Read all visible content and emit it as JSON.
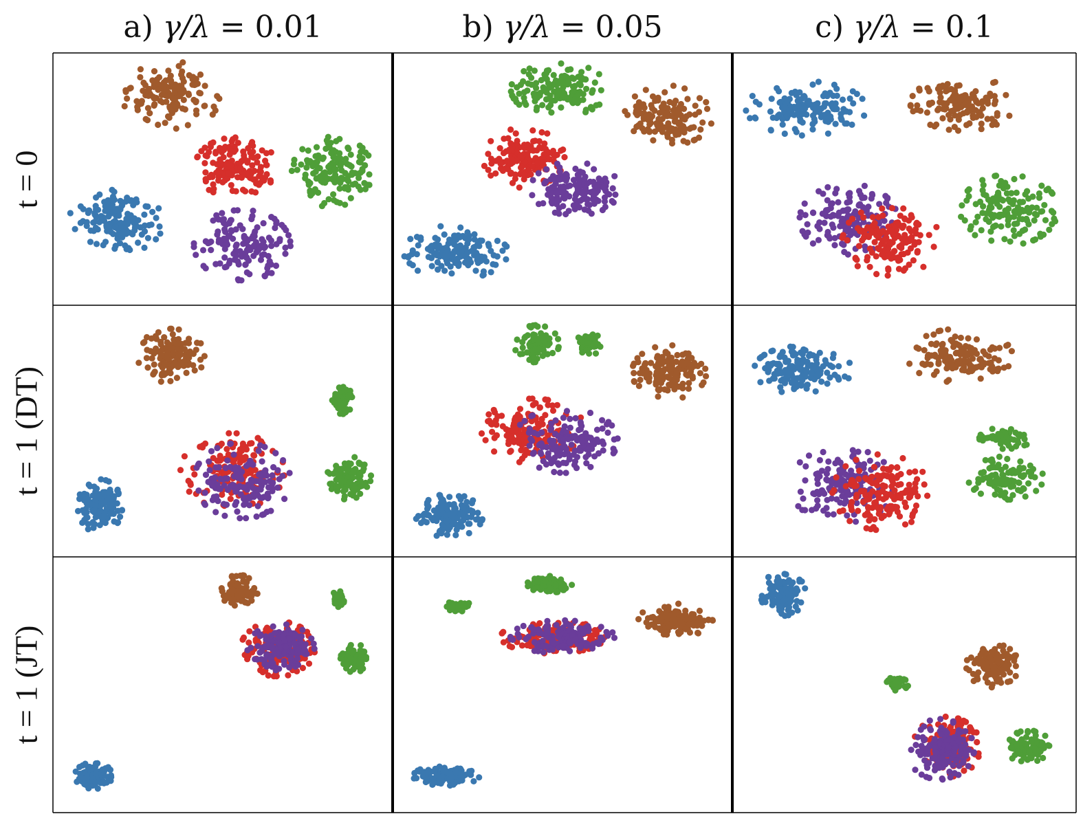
{
  "columns": [
    {
      "prefix": "a) ",
      "value": "0.01"
    },
    {
      "prefix": "b) ",
      "value": "0.05"
    },
    {
      "prefix": "c) ",
      "value": "0.1"
    }
  ],
  "ratio_symbol": "γ/λ",
  "equals": " = ",
  "rows": [
    {
      "label": "t = 0"
    },
    {
      "label": "t = 1 (DT)"
    },
    {
      "label": "t = 1 (JT)"
    }
  ],
  "colors": {
    "blue": "#3a78b0",
    "brown": "#a05a2c",
    "red": "#d62f2b",
    "green": "#4f9e38",
    "purple": "#6a3d9a"
  },
  "chart_data": {
    "type": "scatter",
    "grid": false,
    "x_range": [
      0,
      100
    ],
    "y_range": [
      0,
      100
    ],
    "panels": [
      {
        "row": 0,
        "col": 0,
        "clusters": [
          {
            "color": "brown",
            "cx": 34,
            "cy": 85,
            "sx": 6.5,
            "sy": 6.5,
            "n": 140
          },
          {
            "color": "red",
            "cx": 54,
            "cy": 55,
            "sx": 5.5,
            "sy": 5.5,
            "n": 150
          },
          {
            "color": "green",
            "cx": 84,
            "cy": 53,
            "sx": 5.5,
            "sy": 6.5,
            "n": 150
          },
          {
            "color": "blue",
            "cx": 17,
            "cy": 33,
            "sx": 6.5,
            "sy": 6.5,
            "n": 150
          },
          {
            "color": "purple",
            "cx": 56,
            "cy": 22,
            "sx": 6.5,
            "sy": 6.5,
            "n": 150
          }
        ]
      },
      {
        "row": 0,
        "col": 1,
        "clusters": [
          {
            "color": "green",
            "cx": 49,
            "cy": 88,
            "sx": 6.5,
            "sy": 5,
            "n": 150
          },
          {
            "color": "brown",
            "cx": 83,
            "cy": 77,
            "sx": 6,
            "sy": 5.5,
            "n": 140
          },
          {
            "color": "red",
            "cx": 38,
            "cy": 59,
            "sx": 5.5,
            "sy": 5.5,
            "n": 150
          },
          {
            "color": "purple",
            "cx": 54,
            "cy": 46,
            "sx": 6,
            "sy": 5,
            "n": 150
          },
          {
            "color": "blue",
            "cx": 17,
            "cy": 19,
            "sx": 7,
            "sy": 5,
            "n": 150
          }
        ]
      },
      {
        "row": 0,
        "col": 2,
        "clusters": [
          {
            "color": "blue",
            "cx": 20,
            "cy": 80,
            "sx": 8,
            "sy": 5,
            "n": 150
          },
          {
            "color": "brown",
            "cx": 68,
            "cy": 82,
            "sx": 7,
            "sy": 5,
            "n": 140
          },
          {
            "color": "green",
            "cx": 82,
            "cy": 37,
            "sx": 6.5,
            "sy": 6.5,
            "n": 150
          },
          {
            "color": "purple",
            "cx": 33,
            "cy": 33,
            "sx": 6.5,
            "sy": 6.5,
            "n": 150
          },
          {
            "color": "red",
            "cx": 46,
            "cy": 24,
            "sx": 6.5,
            "sy": 6.5,
            "n": 150
          }
        ]
      },
      {
        "row": 1,
        "col": 0,
        "clusters": [
          {
            "color": "brown",
            "cx": 34,
            "cy": 82,
            "sx": 4.5,
            "sy": 5,
            "n": 130
          },
          {
            "color": "green",
            "cx": 87,
            "cy": 63,
            "sx": 1.5,
            "sy": 2.5,
            "n": 70
          },
          {
            "color": "green",
            "cx": 89,
            "cy": 30,
            "sx": 3,
            "sy": 4,
            "n": 110
          },
          {
            "color": "red",
            "cx": 53,
            "cy": 33,
            "sx": 7,
            "sy": 7,
            "n": 150
          },
          {
            "color": "purple",
            "cx": 56,
            "cy": 29,
            "sx": 6.5,
            "sy": 7,
            "n": 150
          },
          {
            "color": "blue",
            "cx": 12,
            "cy": 18,
            "sx": 3,
            "sy": 5,
            "n": 140
          }
        ]
      },
      {
        "row": 1,
        "col": 1,
        "clusters": [
          {
            "color": "green",
            "cx": 42,
            "cy": 87,
            "sx": 3,
            "sy": 3.5,
            "n": 80
          },
          {
            "color": "green",
            "cx": 58,
            "cy": 87,
            "sx": 2,
            "sy": 2,
            "n": 50
          },
          {
            "color": "brown",
            "cx": 83,
            "cy": 75,
            "sx": 5,
            "sy": 5,
            "n": 140
          },
          {
            "color": "red",
            "cx": 41,
            "cy": 50,
            "sx": 7,
            "sy": 6,
            "n": 150
          },
          {
            "color": "purple",
            "cx": 51,
            "cy": 46,
            "sx": 7,
            "sy": 6,
            "n": 150
          },
          {
            "color": "blue",
            "cx": 15,
            "cy": 14,
            "sx": 4.5,
            "sy": 4,
            "n": 140
          }
        ]
      },
      {
        "row": 1,
        "col": 2,
        "clusters": [
          {
            "color": "blue",
            "cx": 19,
            "cy": 76,
            "sx": 6.5,
            "sy": 4.5,
            "n": 150
          },
          {
            "color": "brown",
            "cx": 67,
            "cy": 82,
            "sx": 7,
            "sy": 5,
            "n": 140
          },
          {
            "color": "green",
            "cx": 81,
            "cy": 47,
            "sx": 3.5,
            "sy": 2,
            "n": 60
          },
          {
            "color": "green",
            "cx": 81,
            "cy": 30,
            "sx": 5,
            "sy": 4,
            "n": 110
          },
          {
            "color": "purple",
            "cx": 31,
            "cy": 27,
            "sx": 7,
            "sy": 7,
            "n": 150
          },
          {
            "color": "red",
            "cx": 43,
            "cy": 24,
            "sx": 6.5,
            "sy": 7,
            "n": 150
          }
        ]
      },
      {
        "row": 2,
        "col": 0,
        "clusters": [
          {
            "color": "brown",
            "cx": 55,
            "cy": 89,
            "sx": 2.5,
            "sy": 3,
            "n": 110
          },
          {
            "color": "green",
            "cx": 86,
            "cy": 86,
            "sx": 1,
            "sy": 1.5,
            "n": 40
          },
          {
            "color": "red",
            "cx": 67,
            "cy": 65,
            "sx": 5,
            "sy": 5,
            "n": 150
          },
          {
            "color": "purple",
            "cx": 68,
            "cy": 65,
            "sx": 4.5,
            "sy": 4.5,
            "n": 150
          },
          {
            "color": "green",
            "cx": 91,
            "cy": 61,
            "sx": 2.5,
            "sy": 2.5,
            "n": 80
          },
          {
            "color": "blue",
            "cx": 10,
            "cy": 12,
            "sx": 2.5,
            "sy": 2.5,
            "n": 100
          }
        ]
      },
      {
        "row": 2,
        "col": 1,
        "clusters": [
          {
            "color": "green",
            "cx": 46,
            "cy": 92,
            "sx": 3,
            "sy": 1.5,
            "n": 90
          },
          {
            "color": "green",
            "cx": 18,
            "cy": 83,
            "sx": 2,
            "sy": 1,
            "n": 40
          },
          {
            "color": "brown",
            "cx": 85,
            "cy": 77,
            "sx": 5,
            "sy": 3,
            "n": 140
          },
          {
            "color": "red",
            "cx": 47,
            "cy": 70,
            "sx": 7,
            "sy": 3,
            "n": 150
          },
          {
            "color": "purple",
            "cx": 50,
            "cy": 70,
            "sx": 7,
            "sy": 3,
            "n": 150
          },
          {
            "color": "blue",
            "cx": 14,
            "cy": 12,
            "sx": 4.5,
            "sy": 1.8,
            "n": 120
          }
        ]
      },
      {
        "row": 2,
        "col": 2,
        "clusters": [
          {
            "color": "blue",
            "cx": 13,
            "cy": 88,
            "sx": 3,
            "sy": 4,
            "n": 120
          },
          {
            "color": "brown",
            "cx": 77,
            "cy": 58,
            "sx": 3.5,
            "sy": 4,
            "n": 120
          },
          {
            "color": "green",
            "cx": 48,
            "cy": 51,
            "sx": 1.5,
            "sy": 1.5,
            "n": 40
          },
          {
            "color": "red",
            "cx": 63,
            "cy": 24,
            "sx": 4.5,
            "sy": 5.5,
            "n": 150
          },
          {
            "color": "purple",
            "cx": 61,
            "cy": 23,
            "sx": 4.5,
            "sy": 5.5,
            "n": 150
          },
          {
            "color": "green",
            "cx": 88,
            "cy": 24,
            "sx": 3,
            "sy": 3,
            "n": 90
          }
        ]
      }
    ]
  }
}
